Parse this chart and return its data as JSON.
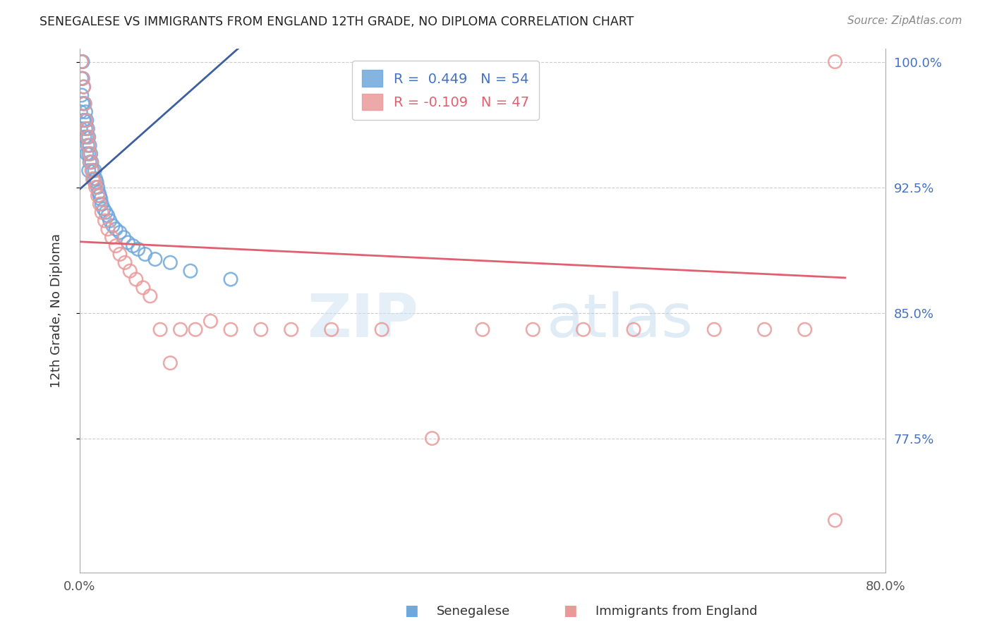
{
  "title": "SENEGALESE VS IMMIGRANTS FROM ENGLAND 12TH GRADE, NO DIPLOMA CORRELATION CHART",
  "source": "Source: ZipAtlas.com",
  "ylabel": "12th Grade, No Diploma",
  "legend_label1": "Senegalese",
  "legend_label2": "Immigrants from England",
  "R1": 0.449,
  "N1": 54,
  "R2": -0.109,
  "N2": 47,
  "color1": "#6fa8dc",
  "color2": "#ea9999",
  "trend_color1": "#3d5fa0",
  "trend_color2": "#e06070",
  "xmin": 0.0,
  "xmax": 0.8,
  "ymin": 0.695,
  "ymax": 1.008,
  "blue_x": [
    0.001,
    0.001,
    0.002,
    0.002,
    0.002,
    0.003,
    0.003,
    0.003,
    0.004,
    0.004,
    0.004,
    0.005,
    0.005,
    0.005,
    0.006,
    0.006,
    0.007,
    0.007,
    0.007,
    0.008,
    0.008,
    0.009,
    0.009,
    0.009,
    0.01,
    0.01,
    0.011,
    0.012,
    0.013,
    0.014,
    0.015,
    0.016,
    0.017,
    0.018,
    0.019,
    0.02,
    0.021,
    0.022,
    0.024,
    0.026,
    0.028,
    0.03,
    0.033,
    0.036,
    0.04,
    0.044,
    0.048,
    0.053,
    0.058,
    0.065,
    0.075,
    0.09,
    0.11,
    0.15
  ],
  "blue_y": [
    0.97,
    0.96,
    1.0,
    0.99,
    0.98,
    1.0,
    0.99,
    0.975,
    0.985,
    0.975,
    0.965,
    0.975,
    0.965,
    0.955,
    0.97,
    0.96,
    0.965,
    0.955,
    0.945,
    0.96,
    0.95,
    0.955,
    0.945,
    0.935,
    0.95,
    0.94,
    0.945,
    0.94,
    0.935,
    0.93,
    0.935,
    0.93,
    0.928,
    0.925,
    0.922,
    0.92,
    0.918,
    0.915,
    0.912,
    0.91,
    0.908,
    0.905,
    0.902,
    0.9,
    0.898,
    0.895,
    0.892,
    0.89,
    0.888,
    0.885,
    0.882,
    0.88,
    0.875,
    0.87
  ],
  "pink_x": [
    0.002,
    0.003,
    0.004,
    0.005,
    0.006,
    0.007,
    0.008,
    0.009,
    0.01,
    0.011,
    0.012,
    0.013,
    0.015,
    0.016,
    0.018,
    0.02,
    0.022,
    0.025,
    0.028,
    0.032,
    0.036,
    0.04,
    0.045,
    0.05,
    0.056,
    0.063,
    0.07,
    0.08,
    0.09,
    0.1,
    0.115,
    0.13,
    0.15,
    0.18,
    0.21,
    0.25,
    0.3,
    0.35,
    0.4,
    0.45,
    0.5,
    0.55,
    0.63,
    0.68,
    0.72,
    0.75,
    0.75
  ],
  "pink_y": [
    1.0,
    0.99,
    0.985,
    0.975,
    0.965,
    0.96,
    0.955,
    0.95,
    0.945,
    0.94,
    0.935,
    0.93,
    0.928,
    0.925,
    0.92,
    0.915,
    0.91,
    0.905,
    0.9,
    0.895,
    0.89,
    0.885,
    0.88,
    0.875,
    0.87,
    0.865,
    0.86,
    0.84,
    0.82,
    0.84,
    0.84,
    0.845,
    0.84,
    0.84,
    0.84,
    0.84,
    0.84,
    0.775,
    0.84,
    0.84,
    0.84,
    0.84,
    0.84,
    0.84,
    0.84,
    0.726,
    1.0
  ],
  "watermark_zip": "ZIP",
  "watermark_atlas": "atlas"
}
